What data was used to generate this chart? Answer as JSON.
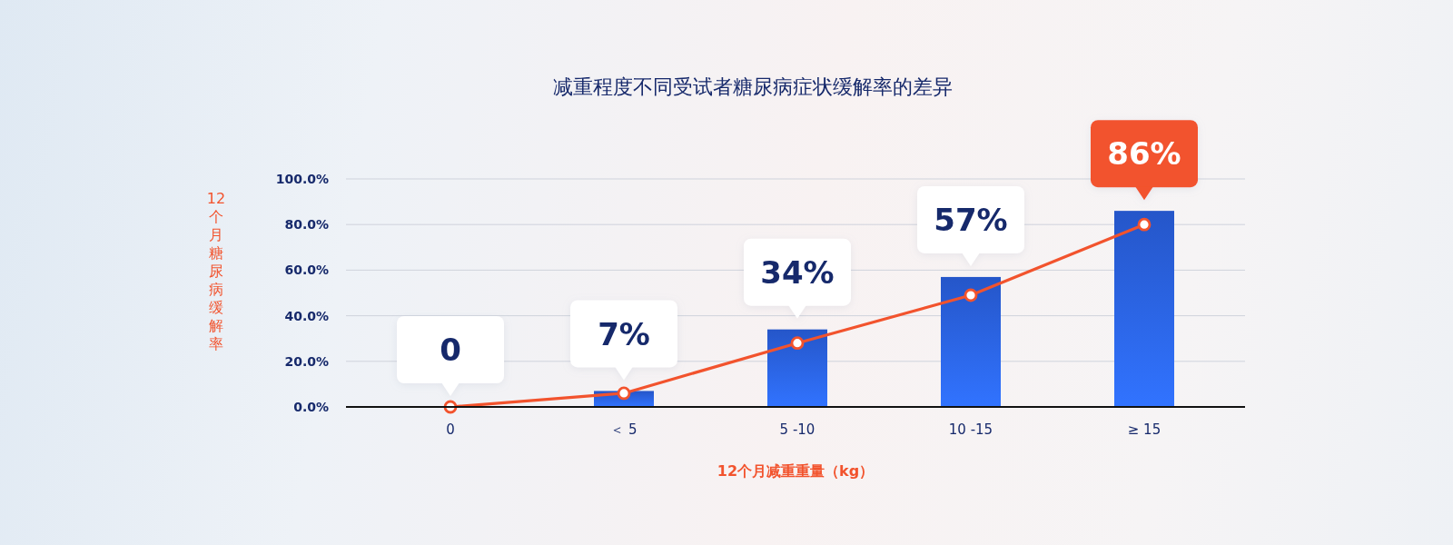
{
  "chart_data": {
    "type": "bar",
    "title": "减重程度不同受试者糖尿病症状缓解率的差异",
    "xlabel": "12个月减重重量（kg）",
    "ylabel": "12个月糖尿病缓解率",
    "categories": [
      "0",
      "＜ 5",
      "5 -10",
      "10 -15",
      "≥ 15"
    ],
    "series": [
      {
        "color": "#2a62e4",
        "values": [
          0,
          7,
          34,
          57,
          86
        ],
        "value_labels": [
          "0",
          "7%",
          "34%",
          "57%",
          "86%"
        ]
      },
      {
        "type": "line",
        "color": "#f2532d",
        "values": [
          0,
          6,
          28,
          49,
          80
        ],
        "marker": "circle"
      }
    ],
    "ylim": [
      0,
      100
    ],
    "yticks": [
      {
        "value": 0,
        "label": "0.0%"
      },
      {
        "value": 20,
        "label": "20.0%"
      },
      {
        "value": 40,
        "label": "40.0%"
      },
      {
        "value": 60,
        "label": "60.0%"
      },
      {
        "value": 80,
        "label": "80.0%"
      },
      {
        "value": 100,
        "label": "100.0%"
      }
    ],
    "grid": "y"
  }
}
